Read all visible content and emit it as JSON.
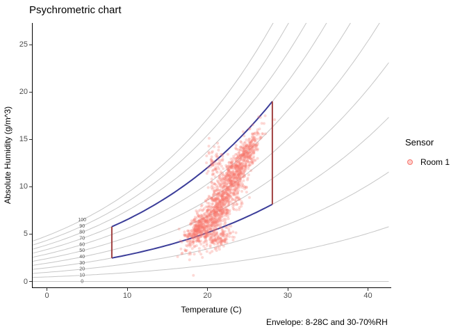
{
  "title": "Psychrometric chart",
  "caption": "Envelope: 8-28C and 30-70%RH",
  "x_axis": {
    "label": "Temperature (C)"
  },
  "y_axis": {
    "label": "Absolute Humidity (g/m^3)"
  },
  "legend": {
    "title": "Sensor",
    "items": [
      {
        "label": "Room 1",
        "color": "#F8766D"
      }
    ]
  },
  "chart_data": {
    "type": "scatter",
    "title": "Psychrometric chart",
    "xlabel": "Temperature (C)",
    "ylabel": "Absolute Humidity (g/m^3)",
    "xlim": [
      -1.9,
      42.8
    ],
    "ylim": [
      -0.6,
      27.3
    ],
    "x_ticks": [
      0,
      10,
      20,
      30,
      40
    ],
    "y_ticks": [
      0,
      5,
      10,
      15,
      20,
      25
    ],
    "grid": false,
    "legend_position": "right",
    "rh_curves": {
      "note": "constant relative-humidity curves: AH = RH/100 * saturationAH(T)",
      "values_percent": [
        0,
        10,
        20,
        30,
        40,
        50,
        60,
        70,
        80,
        90,
        100
      ],
      "label_temp_c": 4.3,
      "color": "#C6C6C6",
      "label_color": "#555555",
      "label_font_px": 7
    },
    "envelope": {
      "t_min_c": 8,
      "t_max_c": 28,
      "rh_min_percent": 30,
      "rh_max_percent": 70,
      "curve_color": "#3B3D99",
      "edge_color": "#A04040",
      "line_width": 2,
      "corner_ah_gm3": {
        "at_8c_30rh": 2.5,
        "at_8c_70rh": 5.8,
        "at_28c_30rh": 8.2,
        "at_28c_70rh": 19.0
      }
    },
    "series": [
      {
        "name": "Room 1",
        "color": "#F8766D",
        "alpha": 0.28,
        "point_radius_px": 2,
        "seed": 1337,
        "approx_range": {
          "t_c": [
            16.3,
            27.2
          ],
          "ah_gm3": [
            3.6,
            16.0
          ]
        },
        "clusters": [
          {
            "t": 20.1,
            "ah": 6.2,
            "sd_t": 1.3,
            "slope": 0.7,
            "sd_ah": 1.0,
            "n": 400
          },
          {
            "t": 22.0,
            "ah": 8.8,
            "sd_t": 1.3,
            "slope": 0.9,
            "sd_ah": 1.3,
            "n": 450
          },
          {
            "t": 23.6,
            "ah": 11.8,
            "sd_t": 1.1,
            "slope": 0.9,
            "sd_ah": 1.1,
            "n": 320
          },
          {
            "t": 25.2,
            "ah": 14.0,
            "sd_t": 0.8,
            "slope": 0.9,
            "sd_ah": 0.9,
            "n": 190
          },
          {
            "t": 20.8,
            "ah": 12.2,
            "sd_t": 0.55,
            "slope": 0.4,
            "sd_ah": 1.2,
            "n": 80
          },
          {
            "t": 18.6,
            "ah": 5.3,
            "sd_t": 0.9,
            "slope": 0.7,
            "sd_ah": 0.7,
            "n": 170
          },
          {
            "t": 21.4,
            "ah": 4.4,
            "sd_t": 0.9,
            "slope": 0.35,
            "sd_ah": 0.5,
            "n": 110
          }
        ]
      }
    ]
  }
}
